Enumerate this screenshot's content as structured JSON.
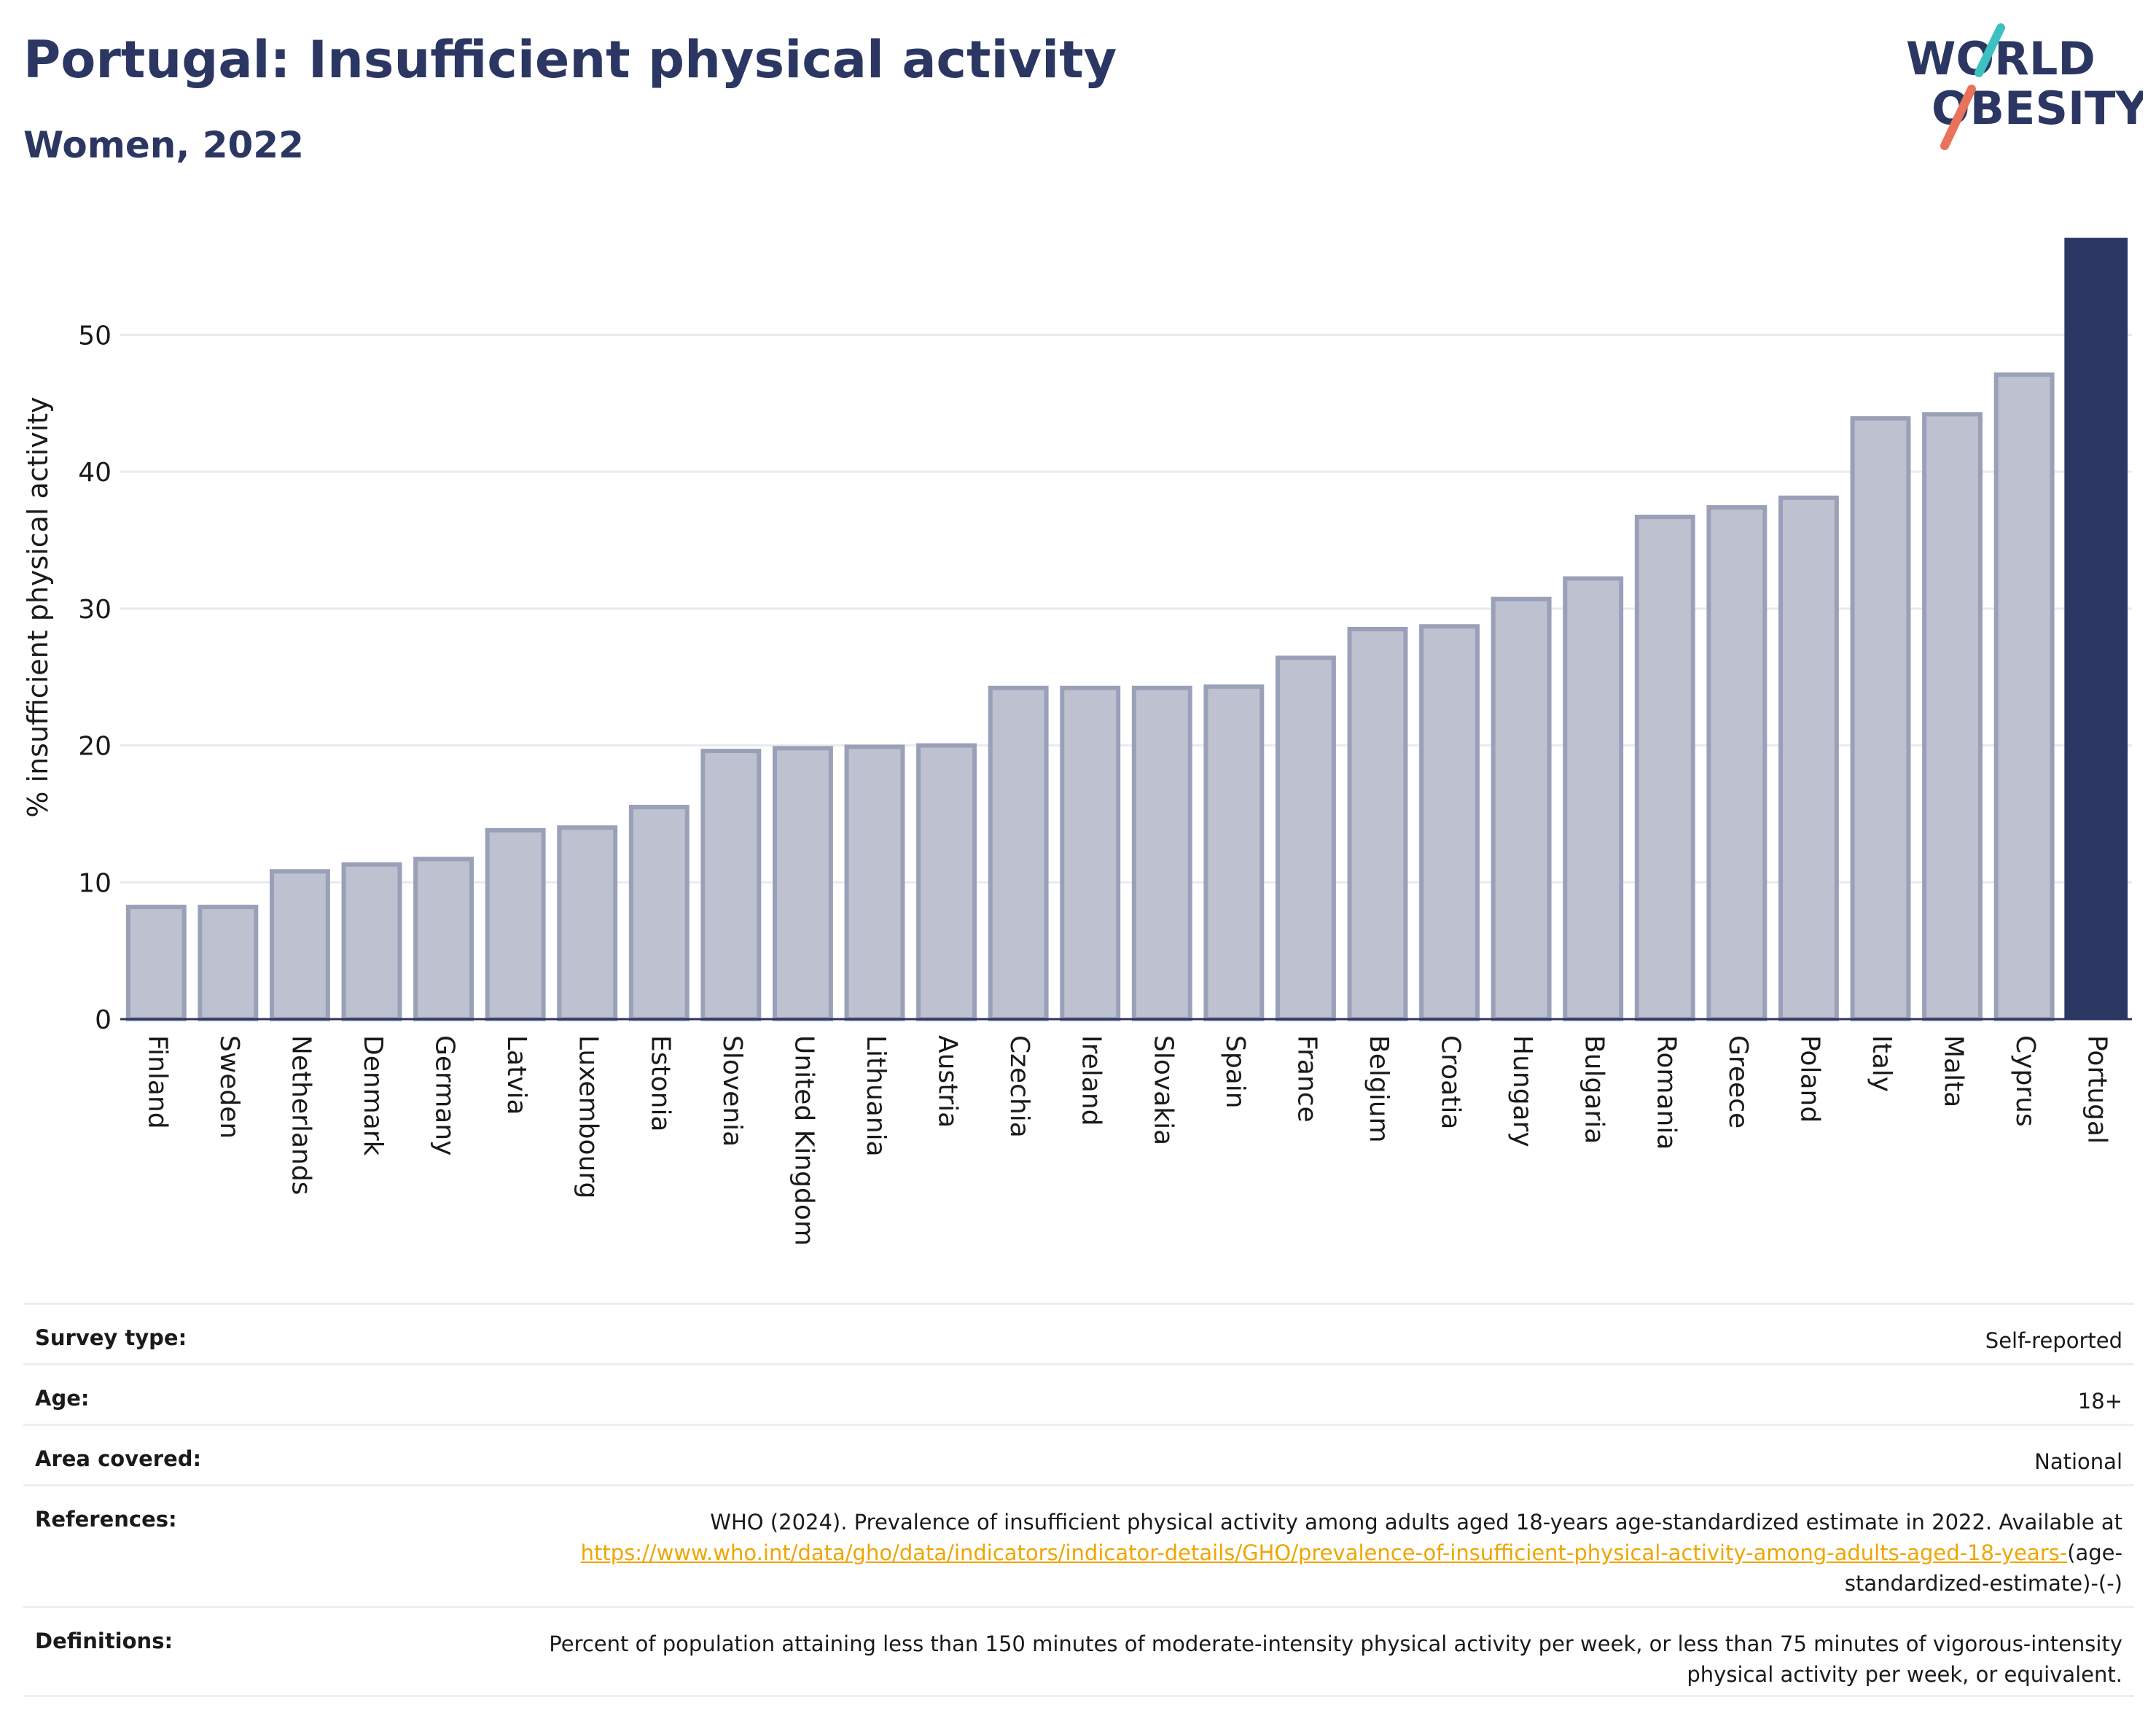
{
  "header": {
    "title": "Portugal: Insufficient physical activity",
    "subtitle": "Women, 2022"
  },
  "logo": {
    "line1": "WORLD",
    "line2": "OBESITY"
  },
  "colors": {
    "highlight": "#2b3762",
    "bar_fill": "#bec1cf",
    "bar_stroke": "#9aa0b8",
    "grid": "#e8eaf0",
    "link": "#f0a500"
  },
  "chart_data": {
    "type": "bar",
    "ylabel": "% insufficient physical activity",
    "ylim": [
      0,
      57
    ],
    "yticks": [
      0,
      10,
      20,
      30,
      40,
      50
    ],
    "highlight": "Portugal",
    "grid": true,
    "categories": [
      "Finland",
      "Sweden",
      "Netherlands",
      "Denmark",
      "Germany",
      "Latvia",
      "Luxembourg",
      "Estonia",
      "Slovenia",
      "United Kingdom",
      "Lithuania",
      "Austria",
      "Czechia",
      "Ireland",
      "Slovakia",
      "Spain",
      "France",
      "Belgium",
      "Croatia",
      "Hungary",
      "Bulgaria",
      "Romania",
      "Greece",
      "Poland",
      "Italy",
      "Malta",
      "Cyprus",
      "Portugal"
    ],
    "values": [
      8.2,
      8.2,
      10.8,
      11.3,
      11.7,
      13.8,
      14.0,
      15.5,
      19.6,
      19.8,
      19.9,
      20.0,
      24.2,
      24.2,
      24.2,
      24.3,
      26.4,
      28.5,
      28.7,
      30.7,
      32.2,
      36.7,
      37.4,
      38.1,
      43.9,
      44.2,
      47.1,
      57.1
    ]
  },
  "info": {
    "survey_type": {
      "label": "Survey type:",
      "value": "Self-reported"
    },
    "age": {
      "label": "Age:",
      "value": "18+"
    },
    "area": {
      "label": "Area covered:",
      "value": "National"
    },
    "references": {
      "label": "References:",
      "text": "WHO (2024). Prevalence of insufficient physical activity among adults aged 18-years age-standardized estimate in 2022. Available at",
      "link": "https://www.who.int/data/gho/data/indicators/indicator-details/GHO/prevalence-of-insufficient-physical-activity-among-adults-aged-18-years-",
      "suffix": "(age-standardized-estimate)-(-)"
    },
    "definitions": {
      "label": "Definitions:",
      "value": "Percent of population attaining less than 150 minutes of moderate-intensity physical activity per week, or less than 75 minutes of vigorous-intensity physical activity per week, or equivalent."
    }
  }
}
